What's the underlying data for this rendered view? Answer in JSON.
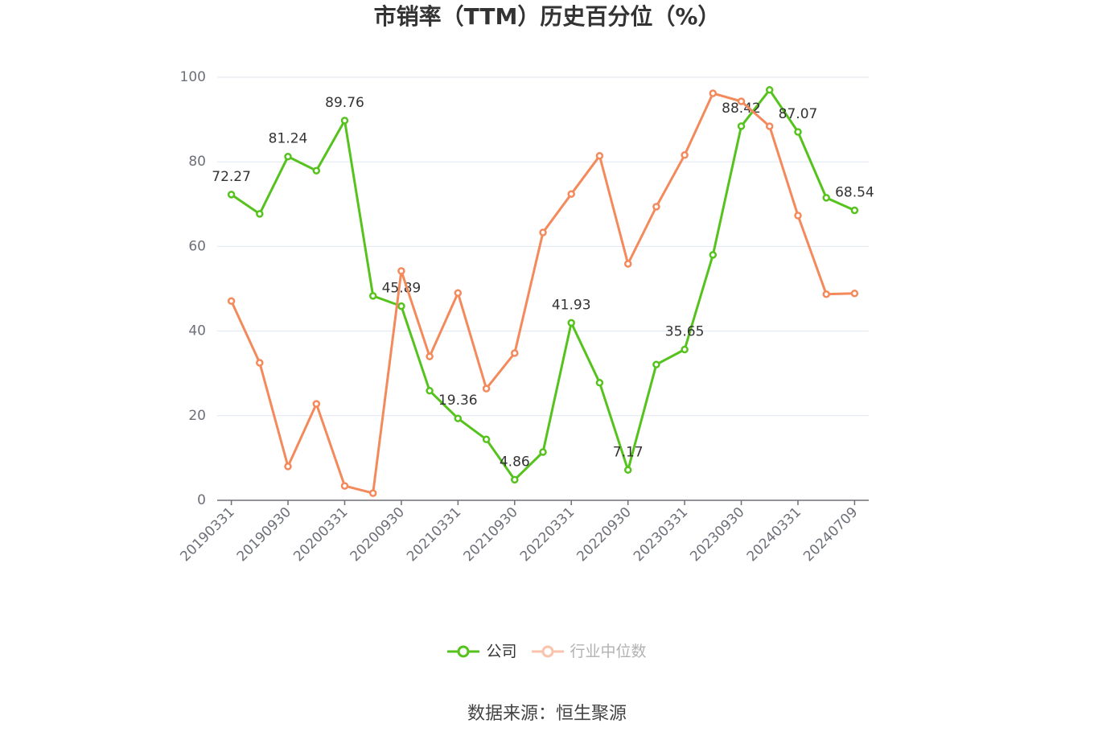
{
  "chart_data": {
    "type": "line",
    "title": "市销率（TTM）历史百分位（%）",
    "xlabel": "",
    "ylabel": "",
    "x": [
      "20190331",
      null,
      "20190930",
      null,
      "20200331",
      null,
      "20200930",
      null,
      "20210331",
      null,
      "20210930",
      null,
      "20220331",
      null,
      "20220930",
      null,
      "20230331",
      null,
      "20230930",
      null,
      "20240331",
      null,
      "20240709"
    ],
    "ylim": [
      0,
      100
    ],
    "y_ticks": [
      0,
      20,
      40,
      60,
      80,
      100
    ],
    "grid": true,
    "legend_position": "bottom",
    "series": [
      {
        "name": "公司",
        "color": "#56C21D",
        "values": [
          72.27,
          67.7,
          81.24,
          77.9,
          89.76,
          48.3,
          45.89,
          25.9,
          19.36,
          14.4,
          4.86,
          11.4,
          41.93,
          27.8,
          7.17,
          32.1,
          35.65,
          58.0,
          88.42,
          97.0,
          87.07,
          71.5,
          68.54
        ],
        "data_labels": [
          72.27,
          null,
          81.24,
          null,
          89.76,
          null,
          45.89,
          null,
          19.36,
          null,
          4.86,
          null,
          41.93,
          null,
          7.17,
          null,
          35.65,
          null,
          88.42,
          null,
          87.07,
          null,
          68.54
        ]
      },
      {
        "name": "行业中位数",
        "color": "#F4895B",
        "values": [
          47.1,
          32.5,
          8.0,
          22.8,
          3.4,
          1.7,
          54.2,
          34.0,
          49.0,
          26.4,
          34.8,
          63.3,
          72.4,
          81.4,
          55.9,
          69.4,
          81.6,
          96.2,
          94.3,
          88.4,
          67.3,
          48.7,
          48.9
        ]
      }
    ]
  },
  "source": "数据来源：恒生聚源"
}
